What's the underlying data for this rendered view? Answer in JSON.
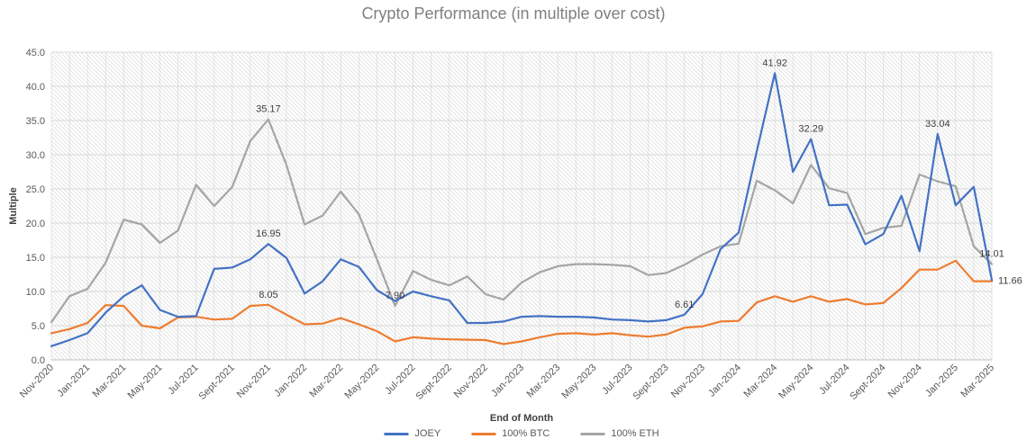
{
  "title": "Crypto Performance (in multiple over cost)",
  "y_axis": {
    "label": "Multiple",
    "ticks": [
      "0.0",
      "5.0",
      "10.0",
      "15.0",
      "20.0",
      "25.0",
      "30.0",
      "35.0",
      "40.0",
      "45.0"
    ]
  },
  "x_axis": {
    "label": "End of Month",
    "tick_labels": [
      "Nov-2020",
      "Jan-2021",
      "Mar-2021",
      "May-2021",
      "Jul-2021",
      "Sept-2021",
      "Nov-2021",
      "Jan-2022",
      "Mar-2022",
      "May-2022",
      "Jul-2022",
      "Sept-2022",
      "Nov-2022",
      "Jan-2023",
      "Mar-2023",
      "May-2023",
      "Jul-2023",
      "Sept-2023",
      "Nov-2023",
      "Jan-2024",
      "Mar-2024",
      "May-2024",
      "Jul-2024",
      "Sept-2024",
      "Nov-2024",
      "Jan-2025",
      "Mar-2025"
    ]
  },
  "legend": [
    {
      "label": "JOEY",
      "color": "#4472C4"
    },
    {
      "label": "100% BTC",
      "color": "#ED7D31"
    },
    {
      "label": "100% ETH",
      "color": "#A5A5A5"
    }
  ],
  "colors": {
    "title": "#7f7f7f",
    "tick_text": "#595959",
    "axis_title_text": "#404040",
    "data_label_text": "#404040",
    "gridline": "#d9d9d9",
    "axis_line": "#bfbfbf",
    "hatch": "#e2e2e2",
    "joey": "#4472C4",
    "btc": "#ED7D31",
    "eth": "#A5A5A5"
  },
  "chart_data": {
    "type": "line",
    "title": "Crypto Performance (in multiple over cost)",
    "xlabel": "End of Month",
    "ylabel": "Multiple",
    "ylim": [
      0,
      45
    ],
    "y_step": 5,
    "grid": true,
    "legend_position": "bottom",
    "plot_background": "diagonal-hatch",
    "x": [
      "Nov-2020",
      "Dec-2020",
      "Jan-2021",
      "Feb-2021",
      "Mar-2021",
      "Apr-2021",
      "May-2021",
      "Jun-2021",
      "Jul-2021",
      "Aug-2021",
      "Sep-2021",
      "Oct-2021",
      "Nov-2021",
      "Dec-2021",
      "Jan-2022",
      "Feb-2022",
      "Mar-2022",
      "Apr-2022",
      "May-2022",
      "Jun-2022",
      "Jul-2022",
      "Aug-2022",
      "Sep-2022",
      "Oct-2022",
      "Nov-2022",
      "Dec-2022",
      "Jan-2023",
      "Feb-2023",
      "Mar-2023",
      "Apr-2023",
      "May-2023",
      "Jun-2023",
      "Jul-2023",
      "Aug-2023",
      "Sep-2023",
      "Oct-2023",
      "Nov-2023",
      "Dec-2023",
      "Jan-2024",
      "Feb-2024",
      "Mar-2024",
      "Apr-2024",
      "May-2024",
      "Jun-2024",
      "Jul-2024",
      "Aug-2024",
      "Sep-2024",
      "Oct-2024",
      "Nov-2024",
      "Dec-2024",
      "Jan-2025",
      "Feb-2025",
      "Mar-2025"
    ],
    "series": [
      {
        "name": "JOEY",
        "color": "#4472C4",
        "values": [
          2.0,
          2.9,
          3.9,
          6.9,
          9.3,
          10.9,
          7.3,
          6.3,
          6.4,
          13.3,
          13.5,
          14.7,
          16.95,
          14.9,
          9.7,
          11.5,
          14.7,
          13.6,
          10.2,
          8.6,
          10.0,
          9.3,
          8.7,
          5.4,
          5.4,
          5.6,
          6.3,
          6.4,
          6.3,
          6.3,
          6.2,
          5.9,
          5.8,
          5.6,
          5.8,
          6.61,
          9.6,
          16.2,
          18.6,
          30.5,
          41.92,
          27.5,
          32.29,
          22.6,
          22.7,
          16.9,
          18.4,
          24.0,
          15.9,
          33.04,
          22.6,
          25.3,
          11.66
        ]
      },
      {
        "name": "100% BTC",
        "color": "#ED7D31",
        "values": [
          3.9,
          4.5,
          5.4,
          8.0,
          7.9,
          5.0,
          4.6,
          6.2,
          6.3,
          5.9,
          6.0,
          7.9,
          8.05,
          6.6,
          5.2,
          5.3,
          6.1,
          5.2,
          4.2,
          2.7,
          3.3,
          3.1,
          3.0,
          2.95,
          2.9,
          2.3,
          2.7,
          3.3,
          3.8,
          3.9,
          3.7,
          3.9,
          3.6,
          3.4,
          3.7,
          4.7,
          4.9,
          5.6,
          5.7,
          8.4,
          9.3,
          8.5,
          9.3,
          8.5,
          8.9,
          8.1,
          8.3,
          10.5,
          13.2,
          13.2,
          14.5,
          11.5,
          11.5
        ]
      },
      {
        "name": "100% ETH",
        "color": "#A5A5A5",
        "values": [
          5.5,
          9.3,
          10.4,
          14.2,
          20.5,
          19.8,
          17.1,
          18.9,
          25.6,
          22.5,
          25.3,
          32.0,
          35.17,
          28.5,
          19.8,
          21.1,
          24.6,
          21.3,
          14.7,
          7.9,
          13.0,
          11.7,
          10.9,
          12.2,
          9.6,
          8.8,
          11.3,
          12.8,
          13.7,
          14.0,
          14.0,
          13.9,
          13.7,
          12.4,
          12.7,
          13.9,
          15.4,
          16.6,
          17.0,
          26.2,
          24.8,
          22.9,
          28.5,
          25.1,
          24.4,
          18.4,
          19.3,
          19.6,
          27.1,
          26.1,
          25.4,
          16.6,
          14.01
        ]
      }
    ],
    "data_labels": [
      {
        "series": 2,
        "index": 12,
        "text": "35.17",
        "anchor": "above"
      },
      {
        "series": 0,
        "index": 12,
        "text": "16.95",
        "anchor": "above"
      },
      {
        "series": 1,
        "index": 12,
        "text": "8.05",
        "anchor": "above"
      },
      {
        "series": 2,
        "index": 19,
        "text": "7.90",
        "anchor": "above"
      },
      {
        "series": 0,
        "index": 35,
        "text": "6.61",
        "anchor": "above"
      },
      {
        "series": 0,
        "index": 40,
        "text": "41.92",
        "anchor": "above"
      },
      {
        "series": 0,
        "index": 42,
        "text": "32.29",
        "anchor": "above"
      },
      {
        "series": 0,
        "index": 49,
        "text": "33.04",
        "anchor": "above"
      },
      {
        "series": 2,
        "index": 52,
        "text": "14.01",
        "anchor": "above"
      },
      {
        "series": 0,
        "index": 52,
        "text": "11.66",
        "anchor": "right"
      }
    ]
  }
}
